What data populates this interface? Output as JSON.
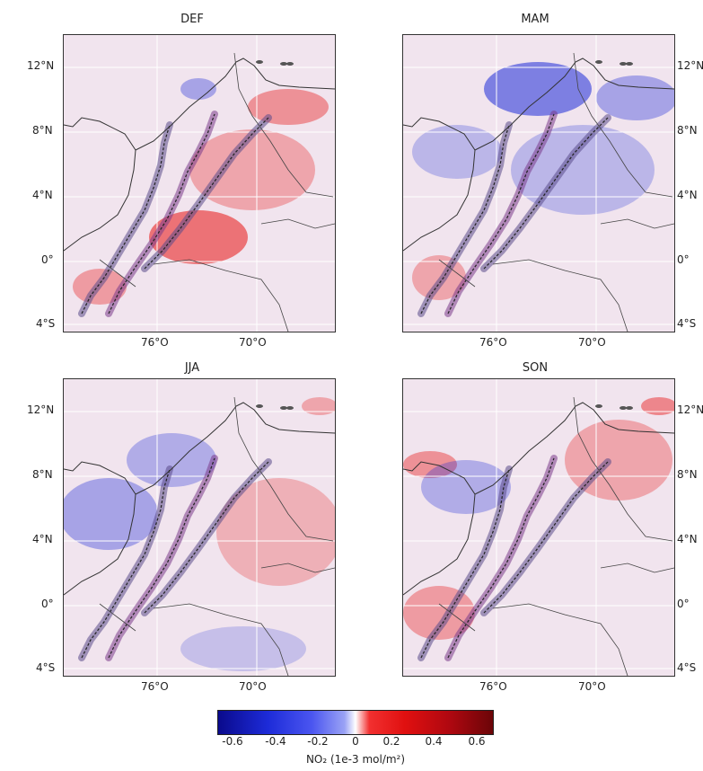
{
  "panels": [
    {
      "title": "DEF",
      "pattern": "red-north-east"
    },
    {
      "title": "MAM",
      "pattern": "blue-north"
    },
    {
      "title": "JJA",
      "pattern": "mixed-blue-west"
    },
    {
      "title": "SON",
      "pattern": "mixed-red-east"
    }
  ],
  "lat_labels": [
    "12°N",
    "8°N",
    "4°N",
    "0°",
    "4°S"
  ],
  "lon_labels": [
    "76°O",
    "70°O"
  ],
  "colorbar": {
    "ticks": [
      "-0.6",
      "-0.4",
      "-0.2",
      "0",
      "0.2",
      "0.4",
      "0.6"
    ],
    "label": "NO₂ (1e-3 mol/m²)",
    "colors": {
      "negative": "#1d2bd8",
      "positive": "#e01010",
      "neutral": "#ffffff"
    }
  }
}
